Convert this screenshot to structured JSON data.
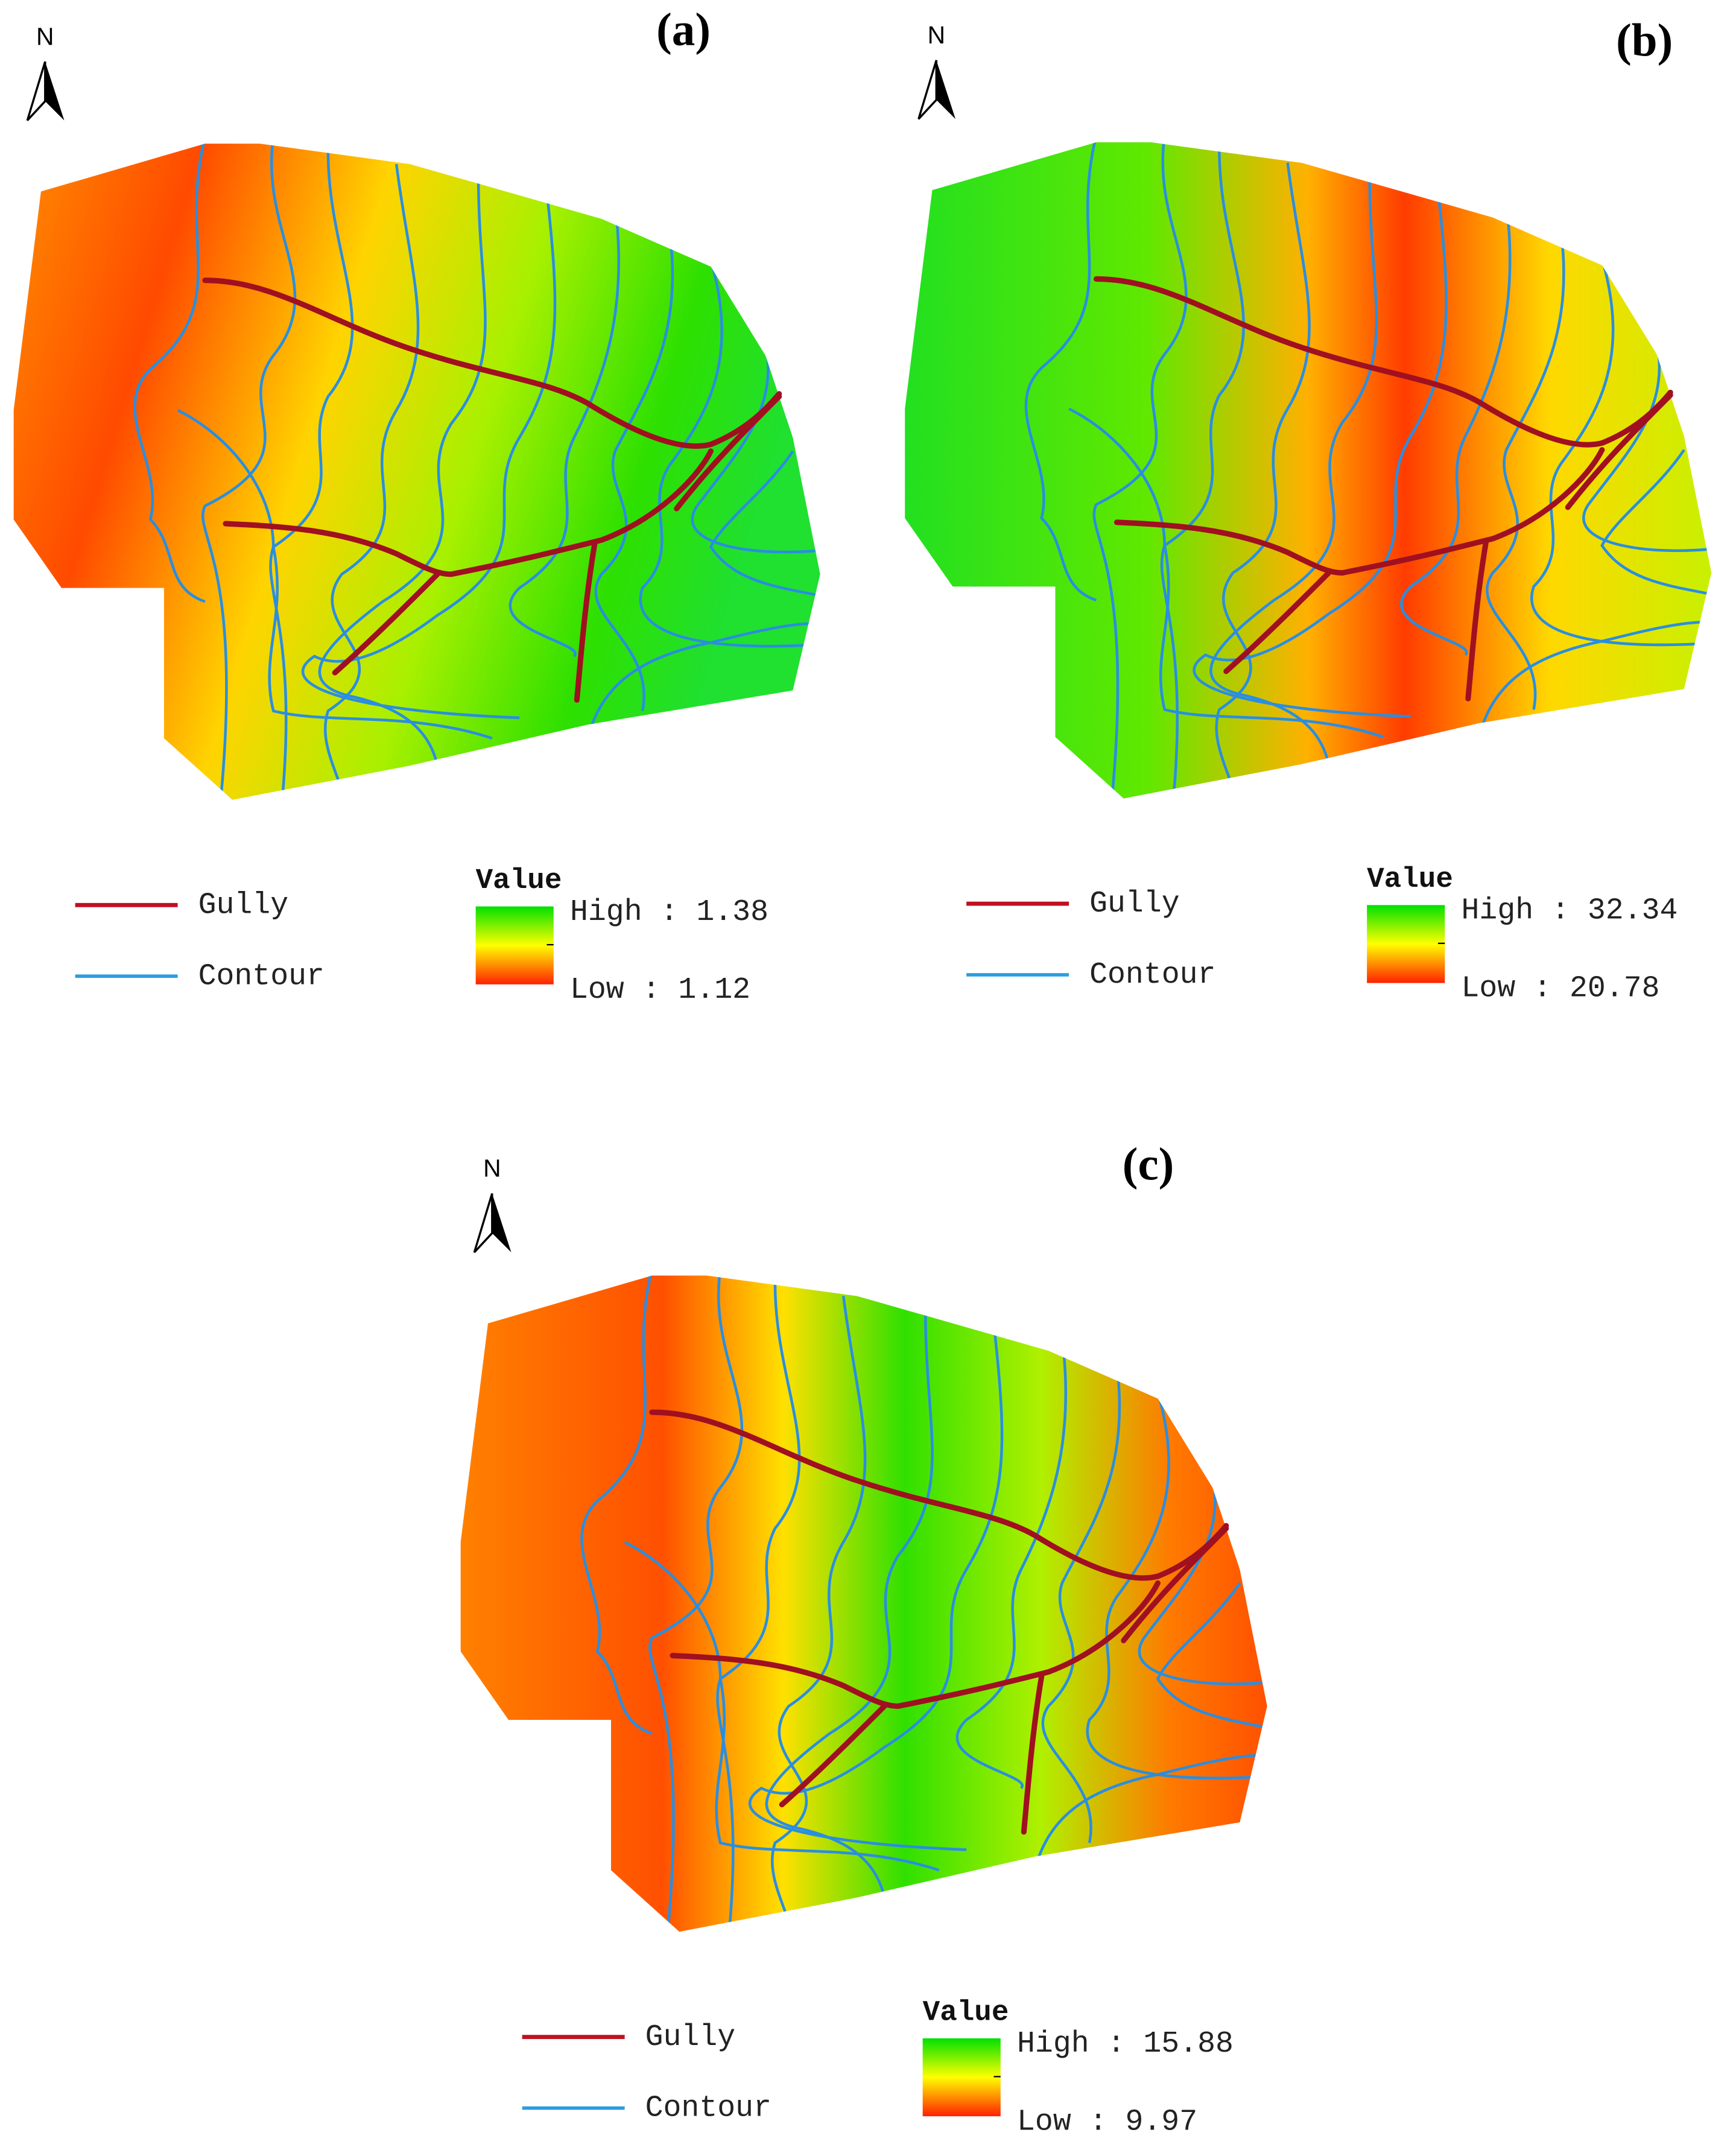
{
  "panels": [
    {
      "label": "(a)",
      "north": "N",
      "legend": {
        "gully": "Gully",
        "contour": "Contour",
        "title": "Value",
        "high": "High : 1.38",
        "low": "Low : 1.12"
      }
    },
    {
      "label": "(b)",
      "north": "N",
      "legend": {
        "gully": "Gully",
        "contour": "Contour",
        "title": "Value",
        "high": "High : 32.34",
        "low": "Low : 20.78"
      }
    },
    {
      "label": "(c)",
      "north": "N",
      "legend": {
        "gully": "Gully",
        "contour": "Contour",
        "title": "Value",
        "high": "High : 15.88",
        "low": "Low : 9.97"
      }
    }
  ]
}
